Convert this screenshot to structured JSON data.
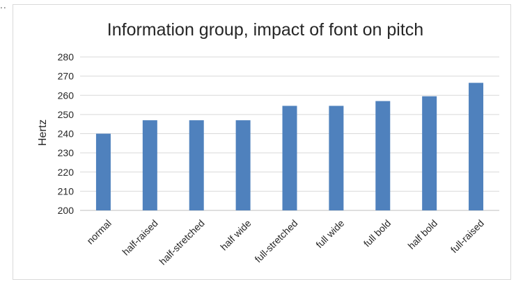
{
  "corner_mark": "..",
  "chart_data": {
    "type": "bar",
    "title": "Information group, impact of font on pitch",
    "xlabel": "",
    "ylabel": "Hertz",
    "categories": [
      "normal",
      "half-raised",
      "half-stretched",
      "half wide",
      "full-stretched",
      "full wide",
      "full bold",
      "half bold",
      "full-raised"
    ],
    "values": [
      240,
      247,
      247,
      247,
      254.5,
      254.5,
      257,
      259.5,
      266.5
    ],
    "ylim": [
      200,
      280
    ],
    "yticks": [
      200,
      210,
      220,
      230,
      240,
      250,
      260,
      270,
      280
    ],
    "grid": true,
    "legend": "none",
    "bar_color": "#4f81bd",
    "grid_color": "#d9d9d9"
  }
}
